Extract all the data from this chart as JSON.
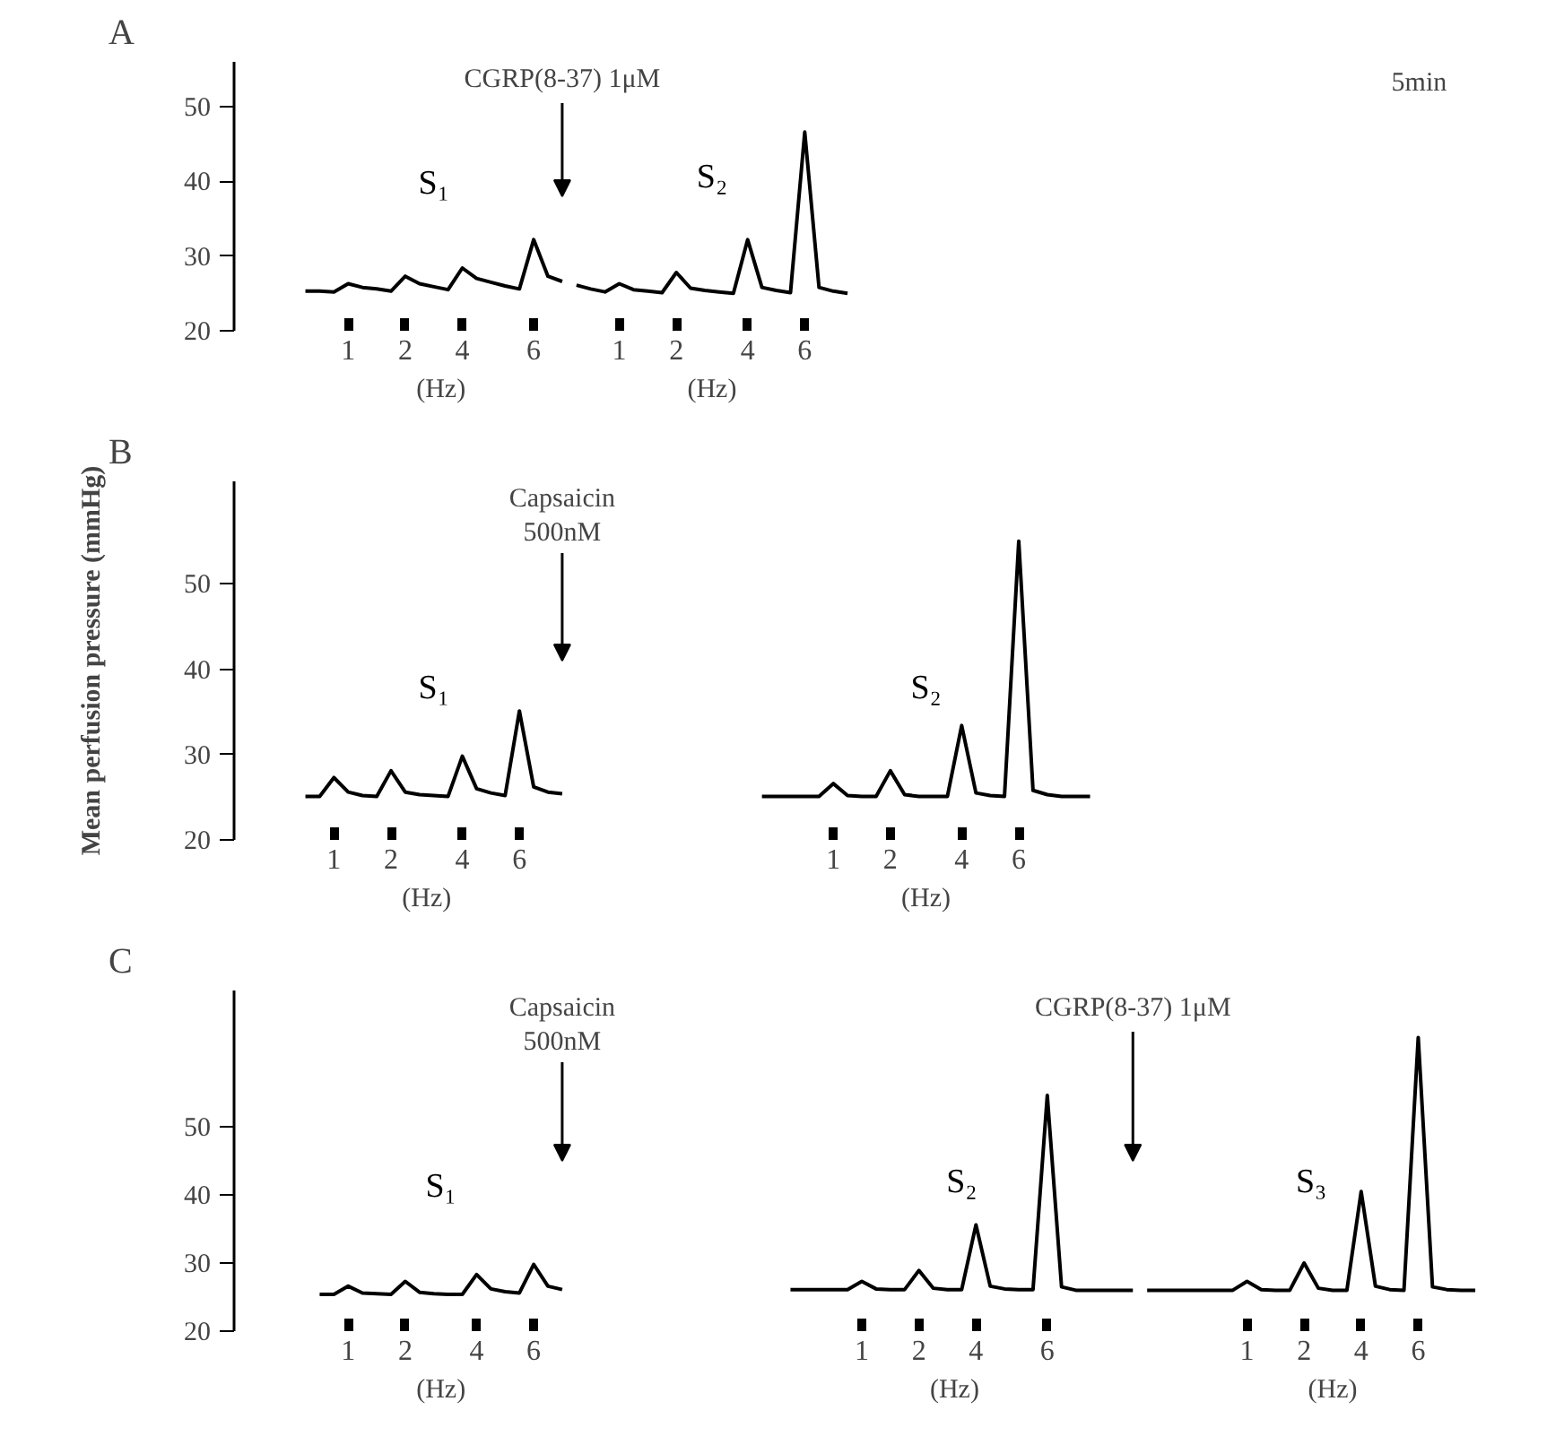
{
  "chart_data": [
    {
      "type": "line",
      "title": "A",
      "xlabel": "(Hz)",
      "ylim": [
        20,
        56
      ],
      "yticks": [
        20,
        30,
        40,
        50
      ],
      "categories": [
        null,
        null,
        null,
        null,
        null,
        null,
        null,
        "1",
        null,
        null,
        null,
        "2",
        null,
        null,
        null,
        "4",
        null,
        null,
        null,
        null,
        "6",
        null,
        null,
        null,
        null,
        null,
        "1",
        null,
        null,
        null,
        "2",
        null,
        null,
        null,
        null,
        "4",
        null,
        null,
        null,
        "6",
        null,
        null,
        null,
        null,
        null,
        null,
        null,
        null,
        null,
        null,
        null,
        null,
        null,
        null,
        null,
        null,
        null,
        null,
        null,
        null,
        null,
        null,
        null,
        null,
        null,
        null,
        null,
        null,
        null,
        null,
        null,
        null,
        null,
        null,
        null,
        null,
        null,
        null,
        null,
        null,
        null,
        null,
        null,
        null,
        null,
        null,
        null
      ],
      "series": [
        {
          "name": "S₁",
          "color": "#000000",
          "values": [
            null,
            null,
            null,
            null,
            25.3,
            25.3,
            25.2,
            26.3,
            25.8,
            25.6,
            25.3,
            27.3,
            26.3,
            25.9,
            25.5,
            28.4,
            27.0,
            26.5,
            26.0,
            25.6,
            32.2,
            27.3,
            26.6,
            null,
            null,
            null,
            null,
            null,
            null,
            null,
            null,
            null,
            null,
            null,
            null,
            null,
            null,
            null,
            null,
            null,
            null,
            null,
            null,
            null,
            null,
            null,
            null,
            null,
            null,
            null,
            null,
            null,
            null,
            null,
            null,
            null,
            null,
            null,
            null,
            null,
            null,
            null,
            null,
            null,
            null,
            null,
            null,
            null,
            null,
            null,
            null,
            null,
            null,
            null,
            null,
            null,
            null,
            null,
            null,
            null,
            null,
            null,
            null,
            null,
            null,
            null,
            null
          ]
        },
        {
          "name": "S₂",
          "color": "#000000",
          "values": [
            null,
            null,
            null,
            null,
            null,
            null,
            null,
            null,
            null,
            null,
            null,
            null,
            null,
            null,
            null,
            null,
            null,
            null,
            null,
            null,
            null,
            null,
            null,
            26.1,
            25.6,
            25.2,
            26.3,
            25.5,
            25.3,
            25.1,
            27.8,
            25.7,
            25.4,
            25.2,
            25.0,
            32.2,
            25.8,
            25.4,
            25.1,
            46.6,
            25.8,
            25.3,
            25.0,
            null,
            null,
            null,
            null,
            null,
            null,
            null,
            null,
            null,
            null,
            null,
            null,
            null,
            null,
            null,
            null,
            null,
            null,
            null,
            null,
            null,
            null,
            null,
            null,
            null,
            null,
            null,
            null,
            null,
            null,
            null,
            null,
            null,
            null,
            null,
            null,
            null,
            null,
            null,
            null,
            null,
            null,
            null,
            null
          ]
        }
      ],
      "annotations": [
        "CGRP(8-37) 1μM",
        "5min"
      ]
    },
    {
      "type": "line",
      "title": "B",
      "xlabel": "(Hz)",
      "ylabel": "Mean perfusion pressure (mmHg)",
      "ylim": [
        20,
        62
      ],
      "yticks": [
        20,
        30,
        40,
        50
      ],
      "categories": [
        null,
        null,
        null,
        null,
        null,
        null,
        "1",
        null,
        null,
        null,
        "2",
        null,
        null,
        null,
        null,
        "4",
        null,
        null,
        null,
        "6",
        null,
        null,
        null,
        null,
        null,
        null,
        null,
        null,
        null,
        null,
        null,
        null,
        null,
        null,
        null,
        null,
        null,
        null,
        null,
        null,
        null,
        "1",
        null,
        null,
        null,
        "2",
        null,
        null,
        null,
        null,
        "4",
        null,
        null,
        null,
        "6",
        null,
        null,
        null,
        null,
        null,
        null,
        null,
        null,
        null,
        null,
        null,
        null,
        null,
        null,
        null,
        null,
        null,
        null,
        null,
        null,
        null,
        null,
        null,
        null,
        null,
        null,
        null,
        null,
        null,
        null,
        null,
        null
      ],
      "series": [
        {
          "name": "S₁",
          "color": "#000000",
          "values": [
            null,
            null,
            null,
            null,
            25.1,
            25.1,
            27.3,
            25.6,
            25.2,
            25.1,
            28.1,
            25.6,
            25.3,
            25.2,
            25.1,
            29.8,
            26.0,
            25.5,
            25.2,
            35.1,
            26.2,
            25.6,
            25.4,
            null,
            null,
            null,
            null,
            null,
            null,
            null,
            null,
            null,
            null,
            null,
            null,
            null,
            null,
            null,
            null,
            null,
            null,
            null,
            null,
            null,
            null,
            null,
            null,
            null,
            null,
            null,
            null,
            null,
            null,
            null,
            null,
            null,
            null,
            null,
            null,
            null,
            null,
            null,
            null,
            null,
            null,
            null,
            null,
            null,
            null,
            null,
            null,
            null,
            null,
            null,
            null,
            null,
            null,
            null,
            null,
            null,
            null,
            null,
            null,
            null,
            null,
            null,
            null
          ]
        },
        {
          "name": "S₂",
          "color": "#000000",
          "values": [
            null,
            null,
            null,
            null,
            null,
            null,
            null,
            null,
            null,
            null,
            null,
            null,
            null,
            null,
            null,
            null,
            null,
            null,
            null,
            null,
            null,
            null,
            null,
            null,
            null,
            null,
            null,
            null,
            null,
            null,
            null,
            null,
            null,
            null,
            null,
            null,
            25.1,
            25.1,
            25.1,
            25.1,
            25.1,
            26.6,
            25.2,
            25.1,
            25.1,
            28.1,
            25.3,
            25.1,
            25.1,
            25.1,
            33.4,
            25.5,
            25.2,
            25.1,
            55.0,
            25.8,
            25.3,
            25.1,
            25.1,
            25.1,
            null,
            null,
            null,
            null,
            null,
            null,
            null,
            null,
            null,
            null,
            null,
            null,
            null,
            null,
            null,
            null,
            null,
            null,
            null,
            null,
            null,
            null,
            null,
            null,
            null,
            null,
            null
          ]
        }
      ],
      "annotations": [
        "Capsaicin\n500nM"
      ]
    },
    {
      "type": "line",
      "title": "C",
      "xlabel": "(Hz)",
      "ylim": [
        20,
        70
      ],
      "yticks": [
        20,
        30,
        40,
        50
      ],
      "categories": [
        null,
        null,
        null,
        null,
        null,
        null,
        null,
        "1",
        null,
        null,
        null,
        "2",
        null,
        null,
        null,
        null,
        "4",
        null,
        null,
        null,
        "6",
        null,
        null,
        null,
        null,
        null,
        null,
        null,
        null,
        null,
        null,
        null,
        null,
        null,
        null,
        null,
        null,
        null,
        null,
        null,
        null,
        null,
        null,
        "1",
        null,
        null,
        null,
        "2",
        null,
        null,
        null,
        "4",
        null,
        null,
        null,
        null,
        "6",
        null,
        null,
        null,
        null,
        null,
        null,
        null,
        null,
        null,
        null,
        null,
        null,
        null,
        "1",
        null,
        null,
        null,
        "2",
        null,
        null,
        null,
        "4",
        null,
        null,
        null,
        "6",
        null,
        null,
        null,
        null
      ],
      "series": [
        {
          "name": "S₁",
          "color": "#000000",
          "values": [
            null,
            null,
            null,
            null,
            null,
            25.4,
            25.4,
            26.6,
            25.6,
            25.5,
            25.4,
            27.3,
            25.7,
            25.5,
            25.4,
            25.4,
            28.3,
            26.2,
            25.8,
            25.6,
            29.8,
            26.6,
            26.1,
            null,
            null,
            null,
            null,
            null,
            null,
            null,
            null,
            null,
            null,
            null,
            null,
            null,
            null,
            null,
            null,
            null,
            null,
            null,
            null,
            null,
            null,
            null,
            null,
            null,
            null,
            null,
            null,
            null,
            null,
            null,
            null,
            null,
            null,
            null,
            null,
            null,
            null,
            null,
            null,
            null,
            null,
            null,
            null,
            null,
            null,
            null,
            null,
            null,
            null,
            null,
            null,
            null,
            null,
            null,
            null,
            null,
            null,
            null,
            null,
            null,
            null,
            null,
            null
          ]
        },
        {
          "name": "S₂",
          "color": "#000000",
          "values": [
            null,
            null,
            null,
            null,
            null,
            null,
            null,
            null,
            null,
            null,
            null,
            null,
            null,
            null,
            null,
            null,
            null,
            null,
            null,
            null,
            null,
            null,
            null,
            null,
            null,
            null,
            null,
            null,
            null,
            null,
            null,
            null,
            null,
            null,
            null,
            null,
            null,
            null,
            26.1,
            26.1,
            26.1,
            26.1,
            26.1,
            27.3,
            26.2,
            26.1,
            26.1,
            28.9,
            26.3,
            26.1,
            26.1,
            35.6,
            26.6,
            26.2,
            26.1,
            26.1,
            54.6,
            26.5,
            26.0,
            26.0,
            26.0,
            26.0,
            26.0,
            null,
            null,
            null,
            null,
            null,
            null,
            null,
            null,
            null,
            null,
            null,
            null,
            null,
            null,
            null,
            null,
            null,
            null,
            null,
            null,
            null,
            null,
            null,
            null
          ]
        },
        {
          "name": "S₃",
          "color": "#000000",
          "values": [
            null,
            null,
            null,
            null,
            null,
            null,
            null,
            null,
            null,
            null,
            null,
            null,
            null,
            null,
            null,
            null,
            null,
            null,
            null,
            null,
            null,
            null,
            null,
            null,
            null,
            null,
            null,
            null,
            null,
            null,
            null,
            null,
            null,
            null,
            null,
            null,
            null,
            null,
            null,
            null,
            null,
            null,
            null,
            null,
            null,
            null,
            null,
            null,
            null,
            null,
            null,
            null,
            null,
            null,
            null,
            null,
            null,
            null,
            null,
            null,
            null,
            null,
            null,
            26.0,
            26.0,
            26.0,
            26.0,
            26.0,
            26.0,
            26.0,
            27.3,
            26.1,
            26.0,
            26.0,
            30.0,
            26.3,
            26.0,
            26.0,
            40.5,
            26.6,
            26.1,
            26.0,
            63.1,
            26.5,
            26.1,
            26.0,
            26.0
          ]
        }
      ],
      "annotations": [
        "Capsaicin\n500nM",
        "CGRP(8-37) 1μM"
      ]
    }
  ]
}
